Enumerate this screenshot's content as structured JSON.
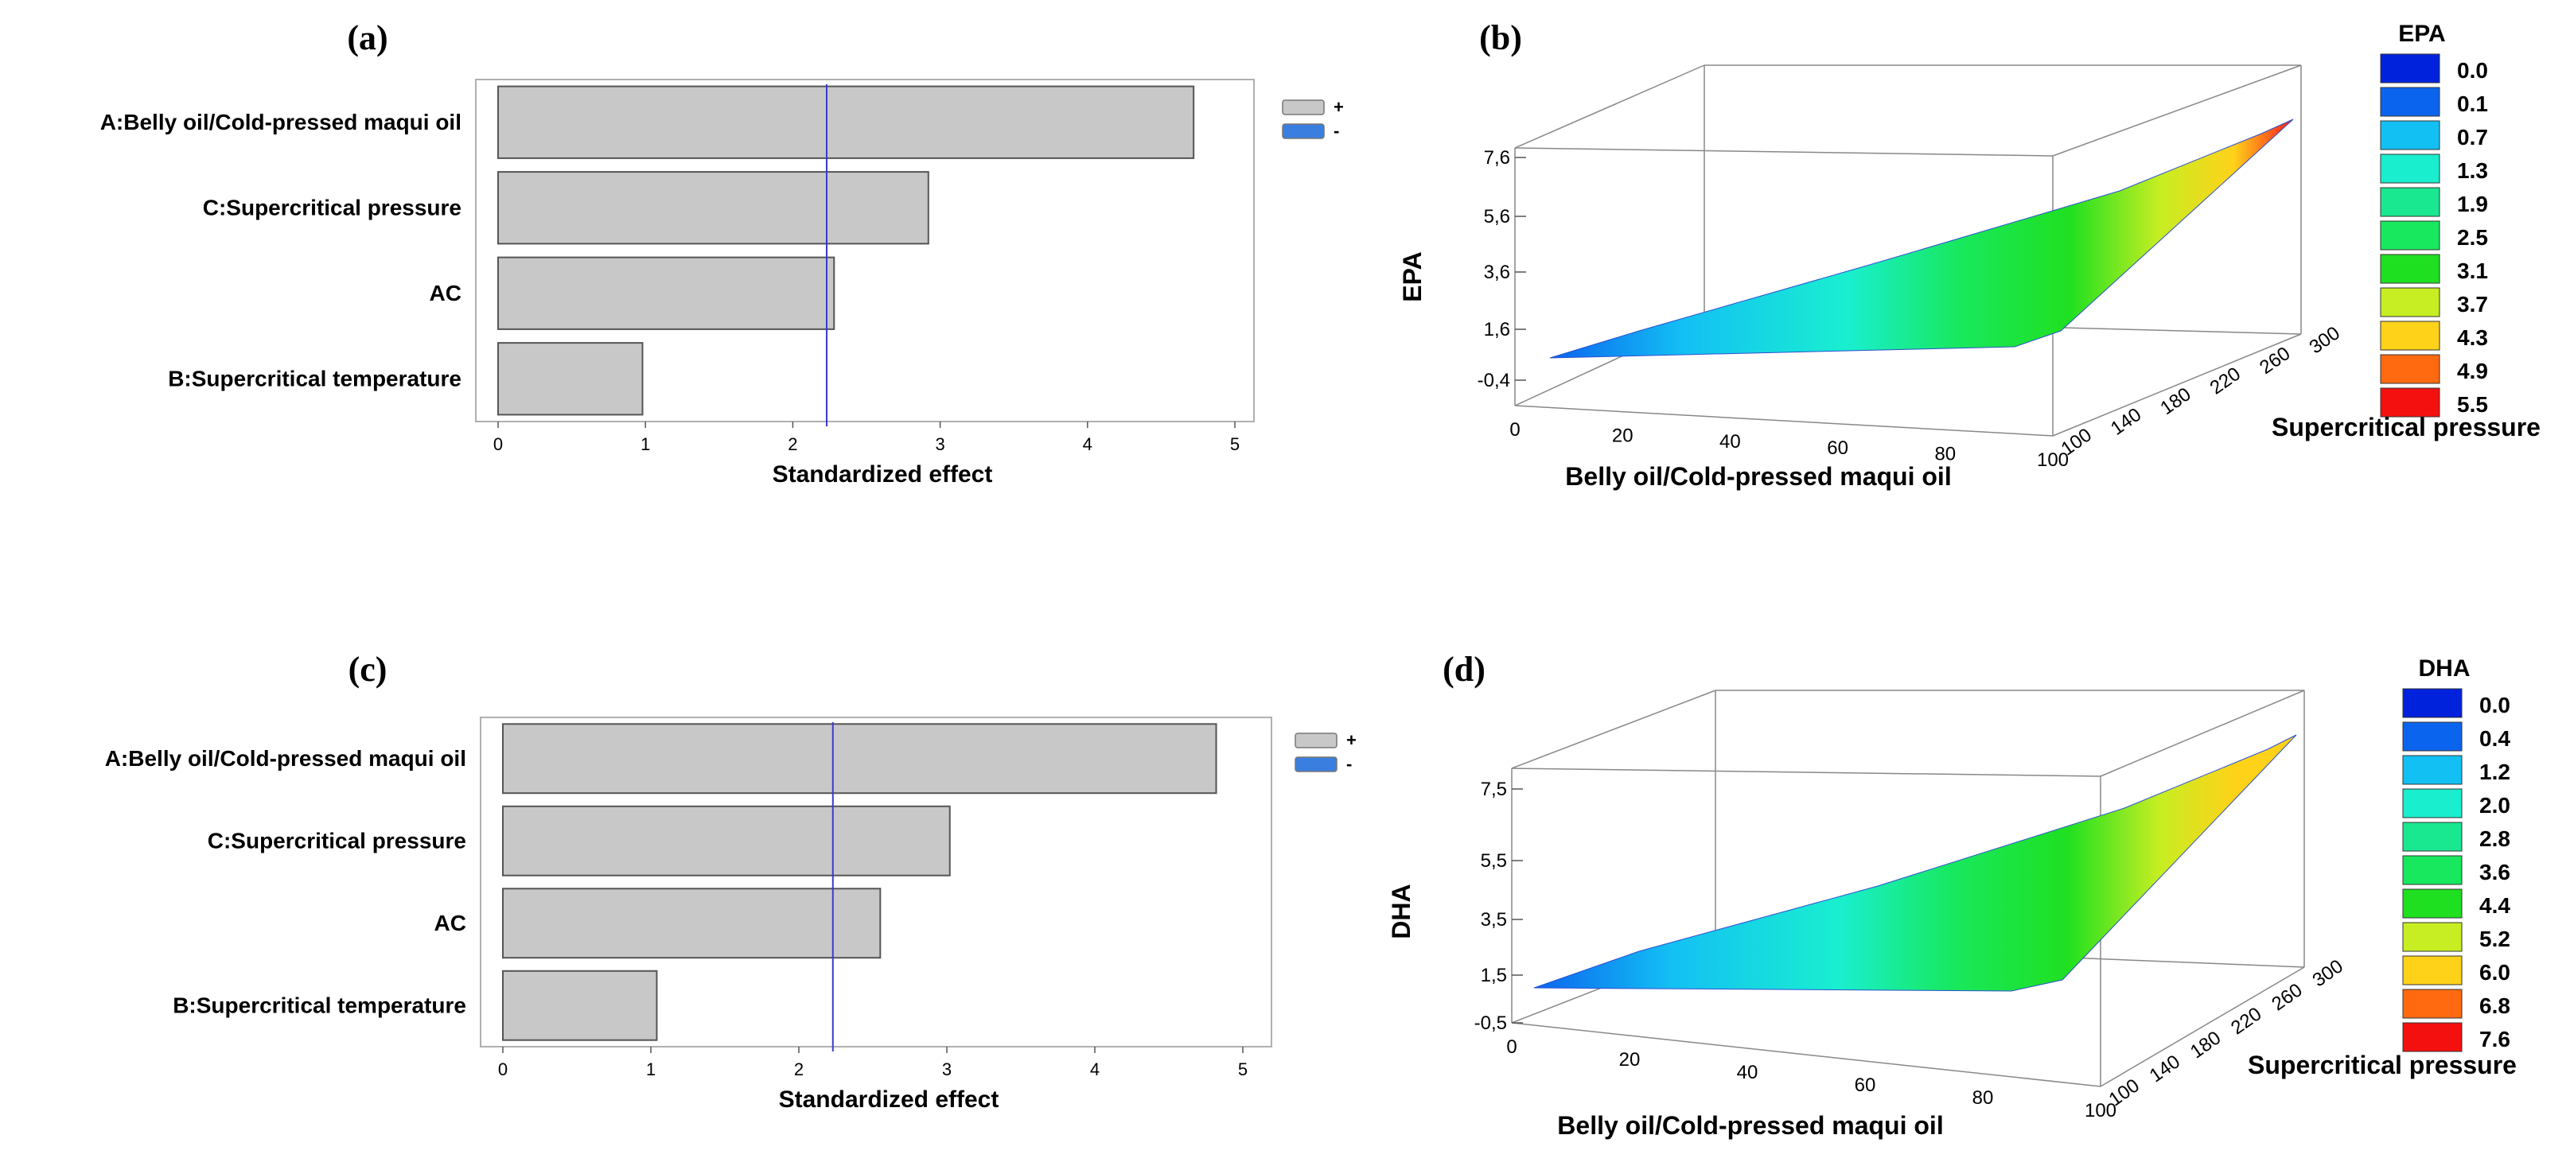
{
  "colors": {
    "bar_fill": "#c8c8c8",
    "bar_stroke": "#555555",
    "ref_line": "#3a3ad0",
    "legend_plus": "#c8c8c8",
    "legend_minus": "#3a7fe0"
  },
  "chart_data": [
    {
      "id": "a",
      "type": "bar",
      "orientation": "horizontal",
      "panel_label": "(a)",
      "categories": [
        "A:Belly oil/Cold-pressed maqui oil",
        "C:Supercritical pressure",
        "AC",
        "B:Supercritical temperature"
      ],
      "values": [
        4.72,
        2.92,
        2.28,
        0.98
      ],
      "reference_line": 2.23,
      "xlabel": "Standardized effect",
      "xlim": [
        0,
        5
      ],
      "xticks": [
        "0",
        "1",
        "2",
        "3",
        "4",
        "5"
      ],
      "legend": [
        {
          "sign": "+",
          "color": "#c8c8c8"
        },
        {
          "sign": "-",
          "color": "#3a7fe0"
        }
      ],
      "legend_position": "top-right"
    },
    {
      "id": "b",
      "type": "surface3d",
      "panel_label": "(b)",
      "zlabel": "EPA",
      "xlabel": "Belly oil/Cold-pressed maqui oil",
      "ylabel": "Supercritical pressure",
      "xticks": [
        "0",
        "20",
        "40",
        "60",
        "80",
        "100"
      ],
      "yticks": [
        "100",
        "140",
        "180",
        "220",
        "260",
        "300"
      ],
      "zticks": [
        "-0,4",
        "1,6",
        "3,6",
        "5,6",
        "7,6"
      ],
      "colorbar_title": "EPA",
      "colorbar_levels": [
        "0.0",
        "0.1",
        "0.7",
        "1.3",
        "1.9",
        "2.5",
        "3.1",
        "3.7",
        "4.3",
        "4.9",
        "5.5"
      ],
      "colorbar_colors": [
        "#0022dd",
        "#0b64ee",
        "#13c0f4",
        "#19efcf",
        "#1ae890",
        "#18e85e",
        "#1fe020",
        "#c6ee22",
        "#ffd21a",
        "#ff6a10",
        "#f51010"
      ],
      "surface_max_color": "#ff1a1a"
    },
    {
      "id": "c",
      "type": "bar",
      "orientation": "horizontal",
      "panel_label": "(c)",
      "categories": [
        "A:Belly oil/Cold-pressed maqui oil",
        "C:Supercritical pressure",
        "AC",
        "B:Supercritical temperature"
      ],
      "values": [
        4.82,
        3.02,
        2.55,
        1.04
      ],
      "reference_line": 2.23,
      "xlabel": "Standardized effect",
      "xlim": [
        0,
        5
      ],
      "xticks": [
        "0",
        "1",
        "2",
        "3",
        "4",
        "5"
      ],
      "legend": [
        {
          "sign": "+",
          "color": "#c8c8c8"
        },
        {
          "sign": "-",
          "color": "#3a7fe0"
        }
      ],
      "legend_position": "top-right"
    },
    {
      "id": "d",
      "type": "surface3d",
      "panel_label": "(d)",
      "zlabel": "DHA",
      "xlabel": "Belly oil/Cold-pressed maqui oil",
      "ylabel": "Supercritical pressure",
      "xticks": [
        "0",
        "20",
        "40",
        "60",
        "80",
        "100"
      ],
      "yticks": [
        "100",
        "140",
        "180",
        "220",
        "260",
        "300"
      ],
      "zticks": [
        "-0,5",
        "1,5",
        "3,5",
        "5,5",
        "7,5"
      ],
      "colorbar_title": "DHA",
      "colorbar_levels": [
        "0.0",
        "0.4",
        "1.2",
        "2.0",
        "2.8",
        "3.6",
        "4.4",
        "5.2",
        "6.0",
        "6.8",
        "7.6"
      ],
      "colorbar_colors": [
        "#0022dd",
        "#0b64ee",
        "#13c0f4",
        "#19efcf",
        "#1ae890",
        "#18e85e",
        "#1fe020",
        "#c6ee22",
        "#ffd21a",
        "#ff6a10",
        "#f51010"
      ],
      "surface_max_color": "#ffd21a"
    }
  ]
}
